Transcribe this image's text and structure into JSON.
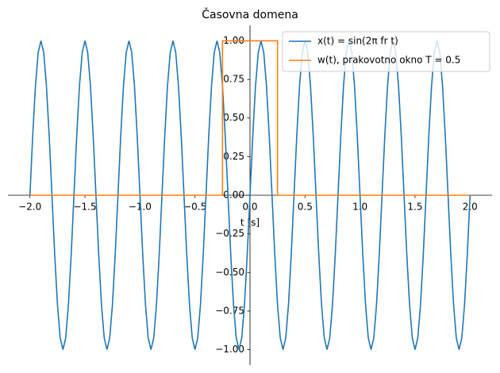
{
  "chart_data": {
    "type": "line",
    "title": "Časovna domena",
    "x_label": "t [s]",
    "xlim": [
      -2.2,
      2.2
    ],
    "ylim": [
      -1.1,
      1.1
    ],
    "xticks": [
      {
        "value": -2,
        "label": "−2.0"
      },
      {
        "value": -1.5,
        "label": "−1.5"
      },
      {
        "value": -1,
        "label": "−1.0"
      },
      {
        "value": -0.5,
        "label": "−0.5"
      },
      {
        "value": 0,
        "label": "0.0"
      },
      0.5,
      {
        "value": 1,
        "label": "1.0"
      },
      1.5,
      {
        "value": 2,
        "label": "2.0"
      }
    ],
    "yticks": [
      {
        "value": -1,
        "label": "−1.00"
      },
      {
        "value": -0.75,
        "label": "−0.75"
      },
      {
        "value": -0.5,
        "label": "−0.50"
      },
      {
        "value": -0.25,
        "label": "−0.25"
      },
      {
        "value": 0,
        "label": "0.00"
      },
      {
        "value": 0.25,
        "label": "0.25"
      },
      {
        "value": 0.5,
        "label": "0.50"
      },
      {
        "value": 0.75,
        "label": "0.75"
      },
      {
        "value": 1,
        "label": "1.00"
      }
    ],
    "legend": "upper right",
    "series": [
      {
        "name": "x(t) = sin(2π fr t)",
        "color": "#1f77b4",
        "x": [
          -2,
          -1.975,
          -1.95,
          -1.925,
          -1.9,
          -1.875,
          -1.85,
          -1.825,
          -1.8,
          -1.775,
          -1.75,
          -1.725,
          -1.7,
          -1.675,
          -1.65,
          -1.625,
          -1.6,
          -1.575,
          -1.55,
          -1.525,
          -1.5,
          -1.475,
          -1.45,
          -1.425,
          -1.4,
          -1.375,
          -1.35,
          -1.325,
          -1.3,
          -1.275,
          -1.25,
          -1.225,
          -1.2,
          -1.175,
          -1.15,
          -1.125,
          -1.1,
          -1.075,
          -1.05,
          -1.025,
          -1,
          -0.975,
          -0.95,
          -0.925,
          -0.9,
          -0.875,
          -0.85,
          -0.825,
          -0.8,
          -0.775,
          -0.75,
          -0.725,
          -0.7,
          -0.675,
          -0.65,
          -0.625,
          -0.6,
          -0.575,
          -0.55,
          -0.525,
          -0.5,
          -0.475,
          -0.45,
          -0.425,
          -0.4,
          -0.375,
          -0.35,
          -0.325,
          -0.3,
          -0.275,
          -0.25,
          -0.225,
          -0.2,
          -0.175,
          -0.15,
          -0.125,
          -0.1,
          -0.075,
          -0.05,
          -0.025,
          0,
          0.025,
          0.05,
          0.075,
          0.1,
          0.125,
          0.15,
          0.175,
          0.2,
          0.225,
          0.25,
          0.275,
          0.3,
          0.325,
          0.35,
          0.375,
          0.4,
          0.425,
          0.45,
          0.475,
          0.5,
          0.525,
          0.55,
          0.575,
          0.6,
          0.625,
          0.65,
          0.675,
          0.7,
          0.725,
          0.75,
          0.775,
          0.8,
          0.825,
          0.85,
          0.875,
          0.9,
          0.925,
          0.95,
          0.975,
          1,
          1.025,
          1.05,
          1.075,
          1.1,
          1.125,
          1.15,
          1.175,
          1.2,
          1.225,
          1.25,
          1.275,
          1.3,
          1.325,
          1.35,
          1.375,
          1.4,
          1.425,
          1.45,
          1.475,
          1.5,
          1.525,
          1.55,
          1.575,
          1.6,
          1.625,
          1.65,
          1.675,
          1.7,
          1.725,
          1.75,
          1.775,
          1.8,
          1.825,
          1.85,
          1.875,
          1.9,
          1.925,
          1.95,
          1.975,
          2
        ],
        "values": [
          0,
          0.383,
          0.707,
          0.924,
          1,
          0.924,
          0.707,
          0.383,
          0,
          -0.383,
          -0.707,
          -0.924,
          -1,
          -0.924,
          -0.707,
          -0.383,
          0,
          0.383,
          0.707,
          0.924,
          1,
          0.924,
          0.707,
          0.383,
          0,
          -0.383,
          -0.707,
          -0.924,
          -1,
          -0.924,
          -0.707,
          -0.383,
          0,
          0.383,
          0.707,
          0.924,
          1,
          0.924,
          0.707,
          0.383,
          0,
          -0.383,
          -0.707,
          -0.924,
          -1,
          -0.924,
          -0.707,
          -0.383,
          0,
          0.383,
          0.707,
          0.924,
          1,
          0.924,
          0.707,
          0.383,
          0,
          -0.383,
          -0.707,
          -0.924,
          -1,
          -0.924,
          -0.707,
          -0.383,
          0,
          0.383,
          0.707,
          0.924,
          1,
          0.924,
          0.707,
          0.383,
          0,
          -0.383,
          -0.707,
          -0.924,
          -1,
          -0.924,
          -0.707,
          -0.383,
          0,
          0.383,
          0.707,
          0.924,
          1,
          0.924,
          0.707,
          0.383,
          0,
          -0.383,
          -0.707,
          -0.924,
          -1,
          -0.924,
          -0.707,
          -0.383,
          0,
          0.383,
          0.707,
          0.924,
          1,
          0.924,
          0.707,
          0.383,
          0,
          -0.383,
          -0.707,
          -0.924,
          -1,
          -0.924,
          -0.707,
          -0.383,
          0,
          0.383,
          0.707,
          0.924,
          1,
          0.924,
          0.707,
          0.383,
          0,
          -0.383,
          -0.707,
          -0.924,
          -1,
          -0.924,
          -0.707,
          -0.383,
          0,
          0.383,
          0.707,
          0.924,
          1,
          0.924,
          0.707,
          0.383,
          0,
          -0.383,
          -0.707,
          -0.924,
          -1,
          -0.924,
          -0.707,
          -0.383,
          0,
          0.383,
          0.707,
          0.924,
          1,
          0.924,
          0.707,
          0.383,
          0,
          -0.383,
          -0.707,
          -0.924,
          -1,
          -0.924,
          -0.707,
          -0.383,
          0
        ]
      },
      {
        "name": "w(t), prakovotno okno T = 0.5",
        "color": "#ff7f0e",
        "x": [
          -2,
          -0.25,
          -0.25,
          0.25,
          0.25,
          2
        ],
        "values": [
          0,
          0,
          1,
          1,
          0,
          0
        ]
      }
    ]
  }
}
